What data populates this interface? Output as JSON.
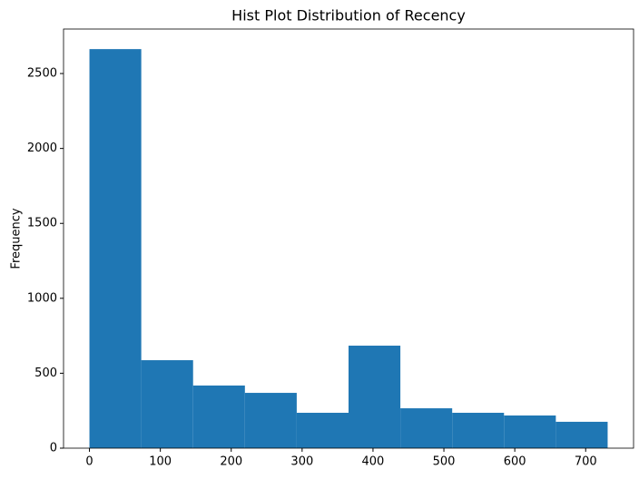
{
  "chart_data": {
    "type": "histogram",
    "title": "Hist Plot Distribution of Recency",
    "ylabel": "Frequency",
    "bins": [
      0,
      73.1,
      146.2,
      219.3,
      292.4,
      365.5,
      438.6,
      511.7,
      584.8,
      657.9,
      731
    ],
    "values": [
      2663,
      587,
      418,
      369,
      236,
      684,
      266,
      236,
      218,
      176
    ],
    "color": "#1f77b4",
    "xlim": [
      -36.55,
      767.55
    ],
    "xticks": [
      0,
      100,
      200,
      300,
      400,
      500,
      600,
      700
    ],
    "ylim": [
      0,
      2797
    ],
    "yticks": [
      0,
      500,
      1000,
      1500,
      2000,
      2500
    ]
  }
}
